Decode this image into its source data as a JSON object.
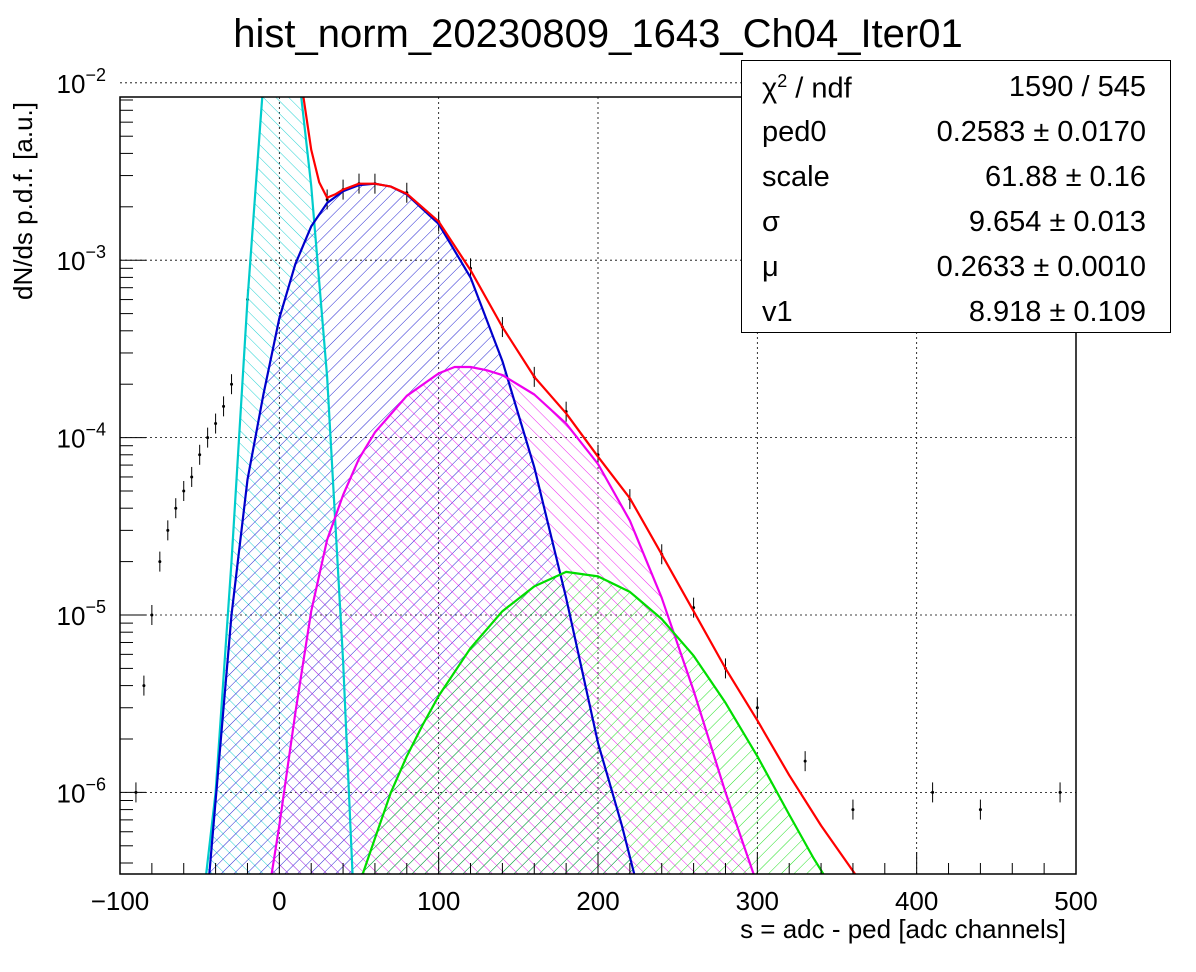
{
  "chart_data": {
    "type": "line",
    "title": "hist_norm_20230809_1643_Ch04_Iter01",
    "xlabel": "s = adc - ped [adc channels]",
    "ylabel": "dN/ds p.d.f. [a.u.]",
    "xlim": [
      -100,
      500
    ],
    "ylim_log10": [
      -6.46,
      -2.08
    ],
    "log_y": true,
    "grid": true,
    "x_ticks": [
      "−100",
      "0",
      "100",
      "200",
      "300",
      "400",
      "500"
    ],
    "y_ticks": [
      {
        "label": "10",
        "exp": "−6",
        "value": 1e-06
      },
      {
        "label": "10",
        "exp": "−5",
        "value": 1e-05
      },
      {
        "label": "10",
        "exp": "−4",
        "value": 0.0001
      },
      {
        "label": "10",
        "exp": "−3",
        "value": 0.001
      },
      {
        "label": "10",
        "exp": "−2",
        "value": 0.01
      }
    ],
    "series": [
      {
        "color": "#00cccc",
        "hatch": true,
        "x": [
          -46,
          -40,
          -30,
          -20,
          -10,
          -5,
          0,
          5,
          10,
          20,
          30,
          40,
          46
        ],
        "y": [
          3.4e-07,
          1e-06,
          2e-05,
          0.0006,
          0.0102,
          0.0217,
          0.0312,
          0.0271,
          0.0165,
          0.00263,
          0.000221,
          5.5e-06,
          3.4e-07
        ]
      },
      {
        "color": "#0000cc",
        "hatch": true,
        "x": [
          -44,
          -30,
          -20,
          -10,
          0,
          10,
          20,
          30,
          40,
          50,
          60,
          70,
          80,
          100,
          120,
          140,
          160,
          180,
          200,
          215,
          223
        ],
        "y": [
          3.4e-07,
          1e-05,
          5.8e-05,
          0.000175,
          0.00047,
          0.00095,
          0.00155,
          0.0021,
          0.00245,
          0.00265,
          0.0027,
          0.0026,
          0.00235,
          0.0016,
          0.0008,
          0.00027,
          6.8e-05,
          1.25e-05,
          1.9e-06,
          6.5e-07,
          3.4e-07
        ]
      },
      {
        "color": "#ee00ee",
        "hatch": true,
        "x": [
          -5,
          0,
          10,
          20,
          30,
          40,
          50,
          60,
          80,
          100,
          110,
          120,
          130,
          140,
          160,
          180,
          200,
          220,
          240,
          260,
          280,
          290,
          298
        ],
        "y": [
          3.4e-07,
          6.5e-07,
          2.8e-06,
          1.05e-05,
          2.65e-05,
          4.75e-05,
          7.6e-05,
          0.000107,
          0.000172,
          0.00023,
          0.00025,
          0.00025,
          0.00024,
          0.000225,
          0.000175,
          0.00012,
          7.1e-05,
          3.4e-05,
          1.25e-05,
          3.75e-06,
          1e-06,
          5.5e-07,
          3.4e-07
        ]
      },
      {
        "color": "#00dd00",
        "hatch": true,
        "x": [
          52,
          60,
          70,
          80,
          90,
          100,
          120,
          140,
          160,
          180,
          200,
          220,
          240,
          260,
          280,
          300,
          320,
          335,
          342
        ],
        "y": [
          3.4e-07,
          5.5e-07,
          1e-06,
          1.6e-06,
          2.4e-06,
          3.5e-06,
          6.5e-06,
          1.05e-05,
          1.45e-05,
          1.75e-05,
          1.65e-05,
          1.35e-05,
          9.5e-06,
          5.9e-06,
          3.2e-06,
          1.6e-06,
          7.5e-07,
          4.3e-07,
          3.4e-07
        ]
      },
      {
        "color": "#ff0000",
        "hatch": false,
        "x": [
          -10,
          0,
          10,
          20,
          25,
          30,
          35,
          40,
          50,
          60,
          70,
          80,
          100,
          120,
          140,
          160,
          180,
          200,
          220,
          240,
          260,
          280,
          300,
          320,
          340,
          362
        ],
        "y": [
          0.0105,
          0.0317,
          0.017,
          0.0042,
          0.00275,
          0.00225,
          0.00235,
          0.0025,
          0.0027,
          0.0027,
          0.0026,
          0.00237,
          0.00165,
          0.00088,
          0.00042,
          0.00022,
          0.000137,
          7.8e-05,
          4.55e-05,
          2.2e-05,
          1.05e-05,
          5e-06,
          2.55e-06,
          1.25e-06,
          6.5e-07,
          3.4e-07
        ]
      },
      {
        "color": "#000000",
        "hatch": false,
        "points": true,
        "x": [
          -90,
          -85,
          -80,
          -75,
          -70,
          -65,
          -60,
          -55,
          -50,
          -45,
          -40,
          -35,
          -30,
          -20,
          30,
          40,
          50,
          60,
          80,
          100,
          120,
          140,
          160,
          180,
          200,
          220,
          240,
          260,
          280,
          300,
          330,
          360,
          410,
          440,
          490
        ],
        "y": [
          1e-06,
          4e-06,
          1e-05,
          2e-05,
          3e-05,
          4e-05,
          5e-05,
          6e-05,
          8e-05,
          0.0001,
          0.00012,
          0.00015,
          0.0002,
          0.0006,
          0.0022,
          0.0025,
          0.0027,
          0.0027,
          0.0024,
          0.00165,
          0.0009,
          0.00042,
          0.00022,
          0.00014,
          8e-05,
          4.5e-05,
          2.2e-05,
          1.1e-05,
          5e-06,
          3e-06,
          1.5e-06,
          8e-07,
          1e-06,
          8e-07,
          1e-06
        ]
      }
    ],
    "stats_box": [
      {
        "label": "χ",
        "sup": "2",
        "label_tail": " / ndf",
        "value": "1590 / 545"
      },
      {
        "label": "ped0",
        "value": "0.2583 ± 0.0170"
      },
      {
        "label": "scale",
        "value": "61.88 ± 0.16"
      },
      {
        "label": "σ",
        "value": "9.654 ± 0.013"
      },
      {
        "label": "μ",
        "value": "0.2633 ± 0.0010"
      },
      {
        "label": "v1",
        "value": "8.918 ± 0.109"
      }
    ]
  }
}
